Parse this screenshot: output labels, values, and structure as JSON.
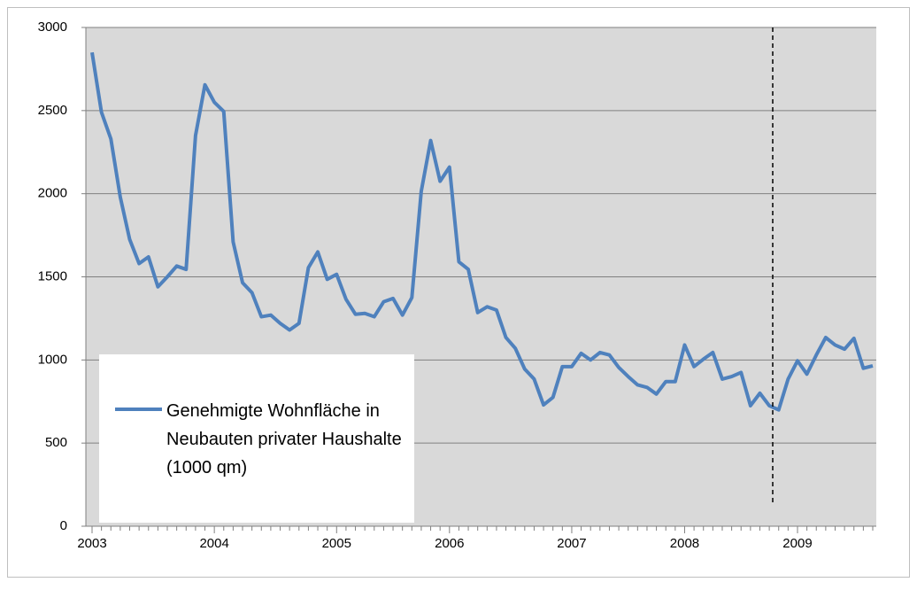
{
  "chart_data": {
    "type": "line",
    "x": [
      "2003",
      null,
      null,
      null,
      null,
      null,
      null,
      null,
      null,
      null,
      null,
      null,
      null,
      "2004",
      null,
      null,
      null,
      null,
      null,
      null,
      null,
      null,
      null,
      null,
      null,
      null,
      "2005",
      null,
      null,
      null,
      null,
      null,
      null,
      null,
      null,
      null,
      null,
      null,
      "2006",
      null,
      null,
      null,
      null,
      null,
      null,
      null,
      null,
      null,
      null,
      null,
      null,
      "2007",
      null,
      null,
      null,
      null,
      null,
      null,
      null,
      null,
      null,
      null,
      null,
      "2008",
      null,
      null,
      null,
      null,
      null,
      null,
      null,
      null,
      null,
      null,
      null,
      "2009",
      null,
      null,
      null,
      null,
      null,
      null,
      null,
      null
    ],
    "series": [
      {
        "name": "Genehmigte Wohnfläche in Neubauten privater Haushalte (1000 qm)",
        "color": "#4f81bd",
        "values": [
          2850,
          2490,
          2330,
          1980,
          1725,
          1580,
          1620,
          1440,
          1500,
          1565,
          1545,
          2350,
          2655,
          2550,
          2495,
          1710,
          1465,
          1405,
          1260,
          1270,
          1220,
          1180,
          1220,
          1555,
          1650,
          1485,
          1515,
          1365,
          1275,
          1280,
          1260,
          1350,
          1370,
          1270,
          1375,
          2015,
          2320,
          2075,
          2160,
          1590,
          1545,
          1285,
          1320,
          1300,
          1135,
          1070,
          945,
          885,
          730,
          775,
          960,
          960,
          1040,
          1000,
          1045,
          1030,
          955,
          900,
          850,
          835,
          795,
          870,
          870,
          1090,
          960,
          1005,
          1045,
          885,
          900,
          925,
          725,
          800,
          725,
          700,
          885,
          995,
          915,
          1030,
          1135,
          1090,
          1065,
          1130,
          950,
          965
        ]
      }
    ],
    "ylim": [
      0,
      3000
    ],
    "yticks": [
      0,
      500,
      1000,
      1500,
      2000,
      2500,
      3000
    ],
    "grid": true,
    "legend": "lower left"
  }
}
